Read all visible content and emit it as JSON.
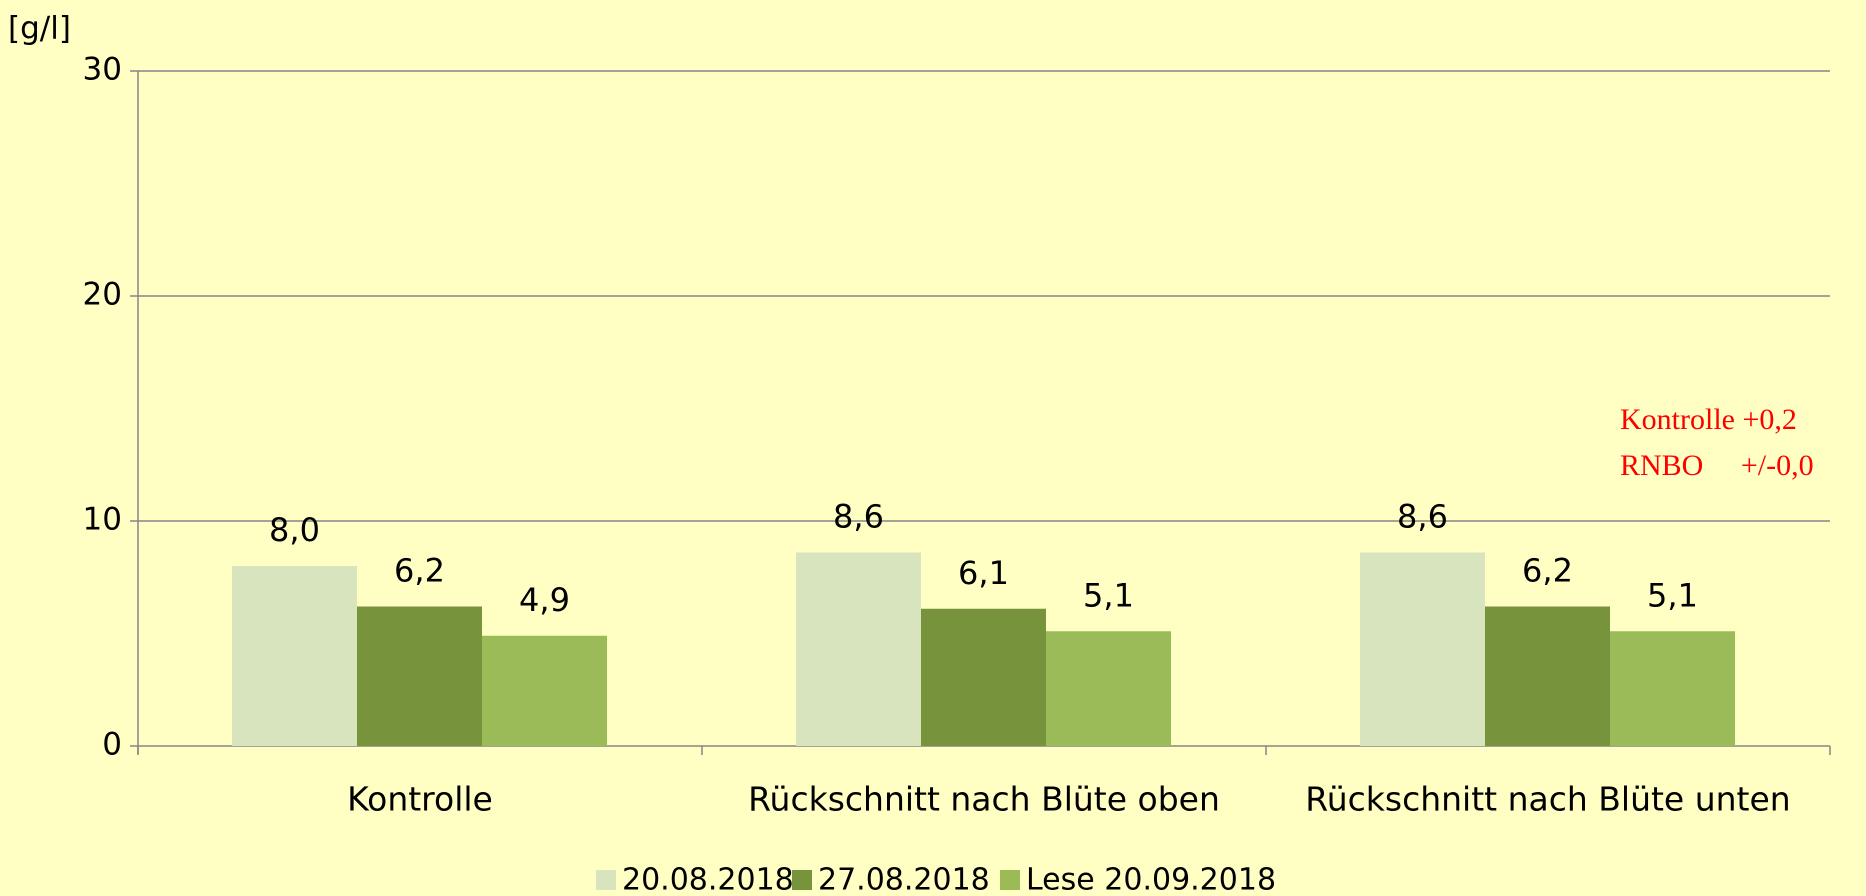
{
  "chart_data": {
    "type": "bar",
    "y_label": "[g/l]",
    "categories": [
      "Kontrolle",
      "Rückschnitt nach Blüte oben",
      "Rückschnitt nach Blüte unten"
    ],
    "series": [
      {
        "name": "20.08.2018",
        "color": "#d7e4bd",
        "values": [
          8.0,
          8.6,
          8.6
        ],
        "value_labels": [
          "8,0",
          "8,6",
          "8,6"
        ]
      },
      {
        "name": "27.08.2018",
        "color": "#77933c",
        "values": [
          6.2,
          6.1,
          6.2
        ],
        "value_labels": [
          "6,2",
          "6,1",
          "6,2"
        ]
      },
      {
        "name": "Lese 20.09.2018",
        "color": "#9bbb59",
        "values": [
          4.9,
          5.1,
          5.1
        ],
        "value_labels": [
          "4,9",
          "5,1",
          "5,1"
        ]
      }
    ],
    "ylim": [
      0,
      30
    ],
    "yticks": [
      0,
      10,
      20,
      30
    ],
    "grid": true,
    "legend": "bottom",
    "annotations": [
      "Kontrolle +0,2",
      "RNBO     +/-0,0"
    ]
  }
}
